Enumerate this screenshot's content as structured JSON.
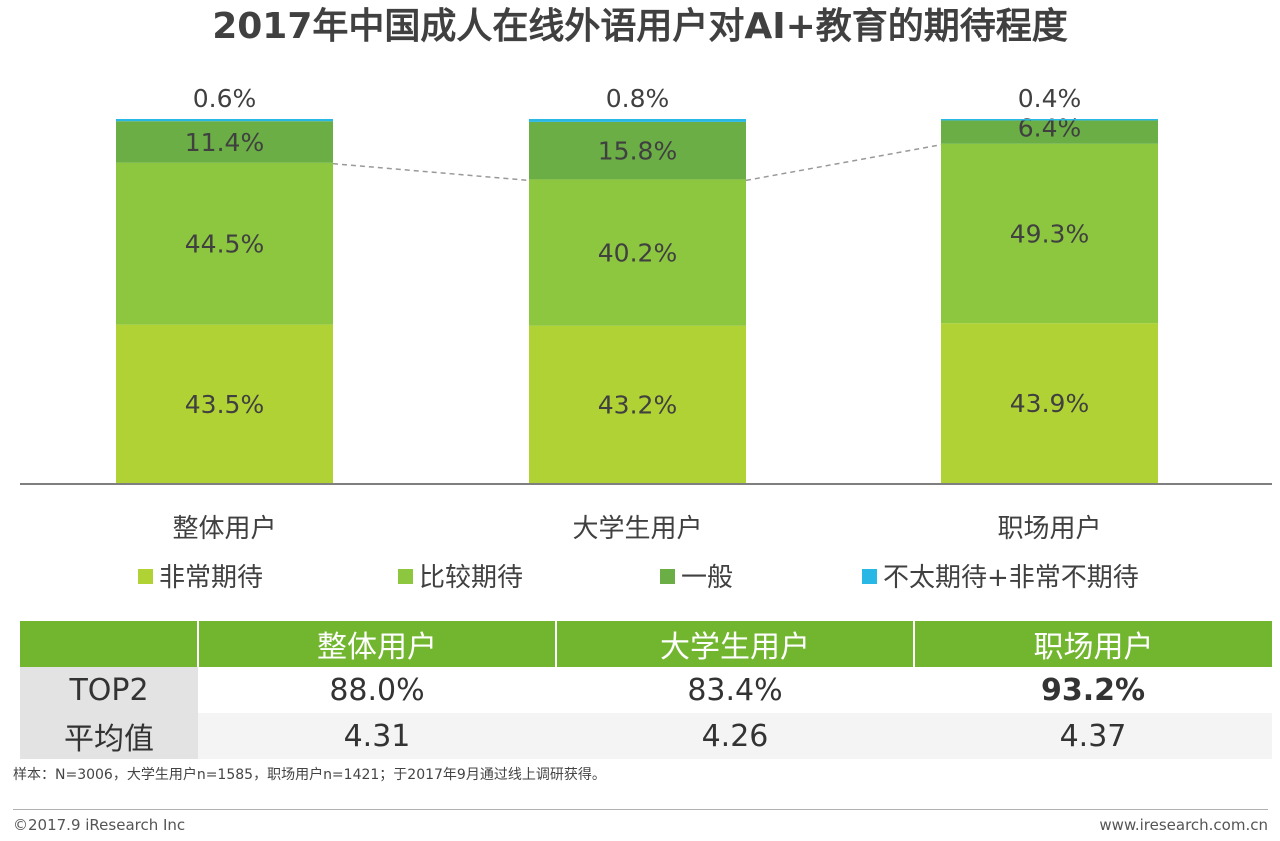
{
  "title": "2017年中国成人在线外语用户对AI+教育的期待程度",
  "chart_data": {
    "type": "bar",
    "stacked": true,
    "title": "2017年中国成人在线外语用户对AI+教育的期待程度",
    "categories": [
      "整体用户",
      "大学生用户",
      "职场用户"
    ],
    "series": [
      {
        "name": "非常期待",
        "values": [
          43.5,
          43.2,
          43.9
        ],
        "labels": [
          "43.5%",
          "43.2%",
          "43.9%"
        ],
        "color": "#b1d234"
      },
      {
        "name": "比较期待",
        "values": [
          44.5,
          40.2,
          49.3
        ],
        "labels": [
          "44.5%",
          "40.2%",
          "49.3%"
        ],
        "color": "#8dc63f"
      },
      {
        "name": "一般",
        "values": [
          11.4,
          15.8,
          6.4
        ],
        "labels": [
          "11.4%",
          "15.8%",
          "6.4%"
        ],
        "color": "#6aae45"
      },
      {
        "name": "不太期待+非常不期待",
        "values": [
          0.6,
          0.8,
          0.4
        ],
        "labels": [
          "0.6%",
          "0.8%",
          "0.4%"
        ],
        "color": "#29b8e5"
      }
    ],
    "ylim": [
      0,
      100
    ],
    "unit": "%",
    "connector": "dashed line joining the tops of the 比较期待 segments",
    "legend_position": "bottom"
  },
  "table": {
    "headers": [
      "整体用户",
      "大学生用户",
      "职场用户"
    ],
    "rows": [
      {
        "label": "TOP2",
        "values": [
          "88.0%",
          "83.4%",
          "93.2%"
        ],
        "bold_index": 2
      },
      {
        "label": "平均值",
        "values": [
          "4.31",
          "4.26",
          "4.37"
        ]
      }
    ]
  },
  "note": "样本：N=3006，大学生用户n=1585，职场用户n=1421；于2017年9月通过线上调研获得。",
  "footer": {
    "copyright": "©2017.9  iResearch Inc",
    "website": "www.iresearch.com.cn"
  },
  "colors": {
    "header_green": "#72b62f",
    "rowhead_gray": "#e3e3e3"
  }
}
